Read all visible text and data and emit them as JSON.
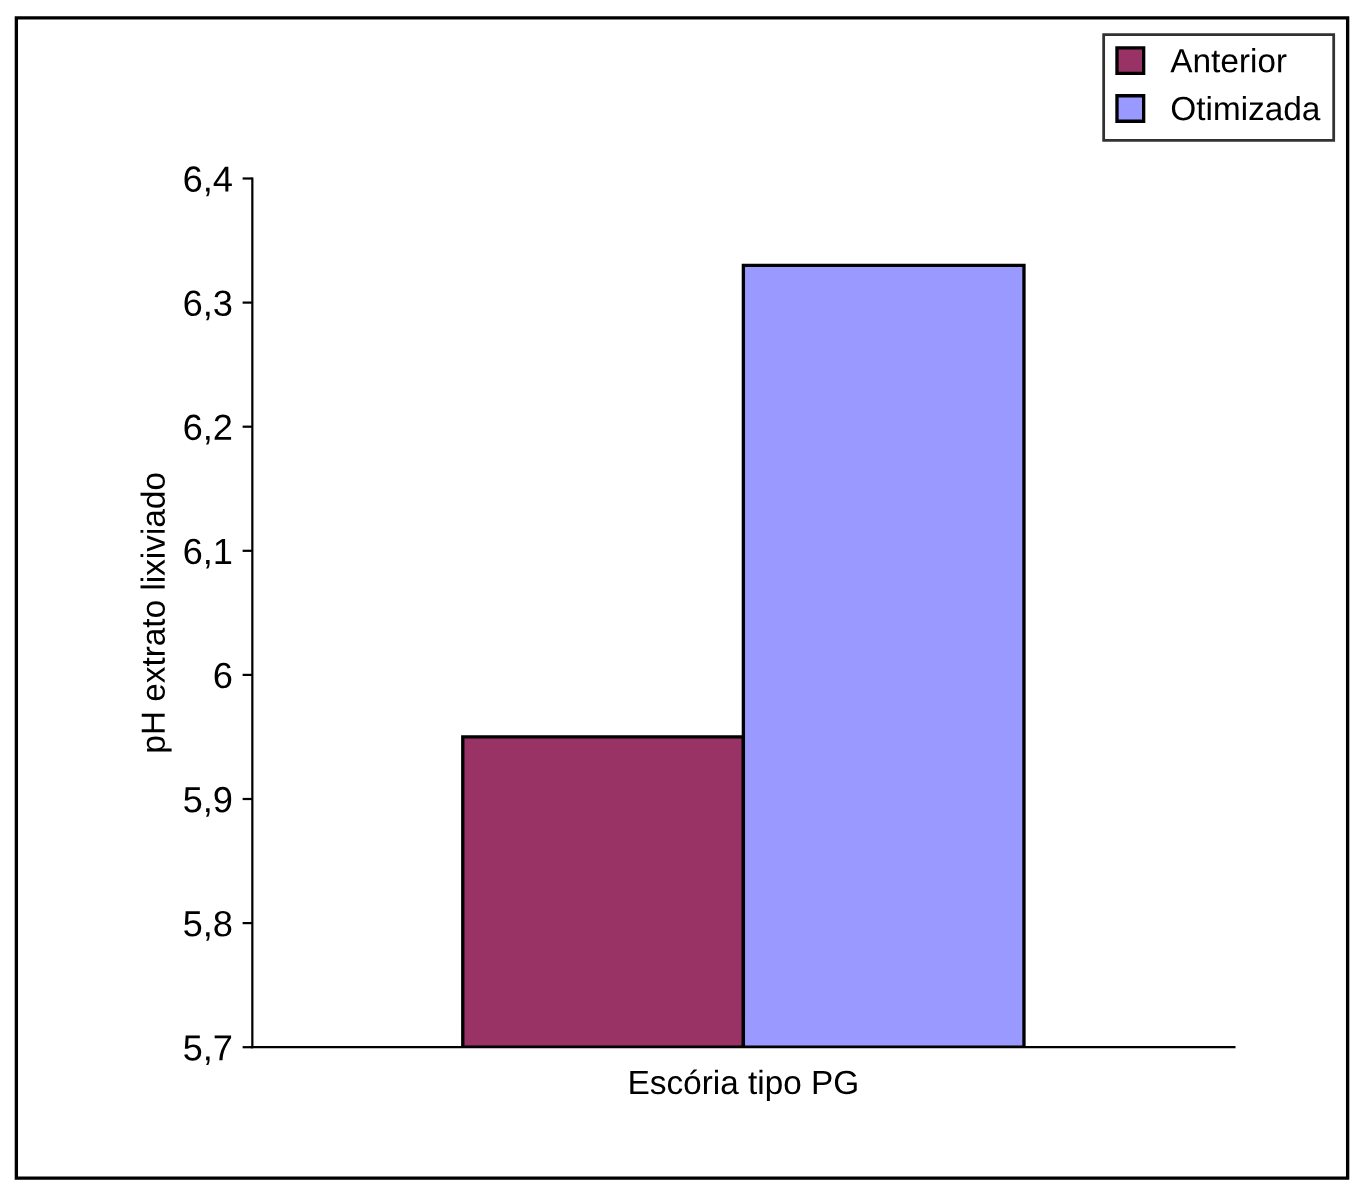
{
  "chart_data": {
    "type": "bar",
    "ylabel": "pH extrato lixiviado",
    "categories": [
      "Escória tipo PG"
    ],
    "series": [
      {
        "name": "Anterior",
        "color": "#993366",
        "values": [
          5.95
        ]
      },
      {
        "name": "Otimizada",
        "color": "#9999ff",
        "values": [
          6.33
        ]
      }
    ],
    "ylim": [
      5.7,
      6.4
    ],
    "yticks": [
      {
        "value": 5.7,
        "label": "5,7"
      },
      {
        "value": 5.8,
        "label": "5,8"
      },
      {
        "value": 5.9,
        "label": "5,9"
      },
      {
        "value": 6.0,
        "label": "6"
      },
      {
        "value": 6.1,
        "label": "6,1"
      },
      {
        "value": 6.2,
        "label": "6,2"
      },
      {
        "value": 6.3,
        "label": "6,3"
      },
      {
        "value": 6.4,
        "label": "6,4"
      }
    ],
    "legend": "top right",
    "grid": false
  }
}
